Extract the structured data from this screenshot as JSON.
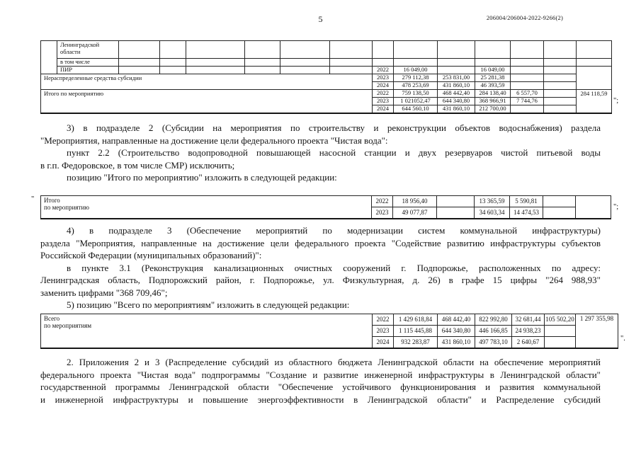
{
  "header": {
    "page_number": "5",
    "doc_number": "206004/206004-2022-9266(2)"
  },
  "marks": {
    "t1_close": "\";",
    "t2_open": "\"",
    "t2_close": "\";",
    "t3_close": "\"."
  },
  "tables": {
    "t1": {
      "cols": [
        23,
        87,
        58,
        37,
        83,
        50,
        70,
        60,
        30,
        62,
        53,
        50,
        47,
        46,
        50
      ],
      "rows": [
        {
          "h": 25,
          "cells": [
            {
              "t": "",
              "rs": 3
            },
            {
              "t": "Ленинградской\nобласти",
              "al": "l",
              "va": "t",
              "ml": true
            },
            {
              "t": ""
            },
            {
              "t": ""
            },
            {
              "t": ""
            },
            {
              "t": ""
            },
            {
              "t": ""
            },
            {
              "t": ""
            },
            {
              "t": ""
            },
            {
              "t": ""
            },
            {
              "t": ""
            },
            {
              "t": ""
            },
            {
              "t": ""
            },
            {
              "t": ""
            },
            {
              "t": ""
            }
          ]
        },
        {
          "h": 10,
          "cells": [
            {
              "t": "в том числе",
              "al": "l"
            },
            {
              "t": ""
            },
            {
              "t": ""
            },
            {
              "t": ""
            },
            {
              "t": ""
            },
            {
              "t": ""
            },
            {
              "t": ""
            },
            {
              "t": ""
            },
            {
              "t": ""
            },
            {
              "t": ""
            },
            {
              "t": ""
            },
            {
              "t": ""
            },
            {
              "t": ""
            },
            {
              "t": ""
            }
          ]
        },
        {
          "h": 11,
          "cells": [
            {
              "t": "ПИР",
              "al": "l"
            },
            {
              "t": ""
            },
            {
              "t": ""
            },
            {
              "t": ""
            },
            {
              "t": ""
            },
            {
              "t": ""
            },
            {
              "t": ""
            },
            {
              "t": "2022"
            },
            {
              "t": "16 049,00"
            },
            {
              "t": ""
            },
            {
              "t": "16 049,00"
            },
            {
              "t": ""
            },
            {
              "t": ""
            },
            {
              "t": "",
              "rs": 3
            }
          ]
        },
        {
          "h": 11,
          "cells": [
            {
              "t": "Нераспределенные средства субсидии",
              "cs": 8,
              "rs": 2,
              "al": "l",
              "va": "t"
            },
            {
              "t": "2023"
            },
            {
              "t": "279 112,38"
            },
            {
              "t": "253 831,00"
            },
            {
              "t": "25 281,38"
            },
            {
              "t": ""
            },
            {
              "t": ""
            }
          ]
        },
        {
          "h": 11,
          "cells": [
            {
              "t": "2024"
            },
            {
              "t": "478 253,69"
            },
            {
              "t": "431 860,10"
            },
            {
              "t": "46 393,59"
            },
            {
              "t": ""
            },
            {
              "t": ""
            }
          ]
        },
        {
          "h": 11,
          "cells": [
            {
              "t": "Итого по мероприятию",
              "cs": 8,
              "rs": 3,
              "al": "l",
              "va": "t"
            },
            {
              "t": "2022"
            },
            {
              "t": "759 138,50"
            },
            {
              "t": "468 442,40"
            },
            {
              "t": "284 138,40"
            },
            {
              "t": "6 557,70"
            },
            {
              "t": ""
            },
            {
              "t": "284 118,59",
              "rs": 3,
              "va": "t"
            }
          ]
        },
        {
          "h": 11,
          "cells": [
            {
              "t": "2023"
            },
            {
              "t": "1 021052,47"
            },
            {
              "t": "644 340,80"
            },
            {
              "t": "368 966,91"
            },
            {
              "t": "7 744,76"
            },
            {
              "t": ""
            }
          ]
        },
        {
          "h": 11,
          "cells": [
            {
              "t": "2024"
            },
            {
              "t": "644 560,10"
            },
            {
              "t": "431 860,10"
            },
            {
              "t": "212 700,00"
            },
            {
              "t": ""
            },
            {
              "t": ""
            }
          ]
        }
      ]
    },
    "t2": {
      "cols": [
        467,
        30,
        62,
        53,
        50,
        47,
        46,
        50
      ],
      "rows": [
        {
          "h": 16,
          "cells": [
            {
              "t": "Итого\nпо мероприятию",
              "rs": 2,
              "al": "l",
              "va": "t",
              "ml": true
            },
            {
              "t": "2022"
            },
            {
              "t": "18 956,40"
            },
            {
              "t": ""
            },
            {
              "t": "13 365,59"
            },
            {
              "t": "5 590,81"
            },
            {
              "t": ""
            },
            {
              "t": "",
              "rs": 2
            }
          ]
        },
        {
          "h": 16,
          "cells": [
            {
              "t": "2023"
            },
            {
              "t": "49 077,87"
            },
            {
              "t": ""
            },
            {
              "t": "34 603,34"
            },
            {
              "t": "14 474,53"
            },
            {
              "t": ""
            }
          ]
        }
      ]
    },
    "t3": {
      "cols": [
        468,
        30,
        62,
        53,
        52,
        46,
        44,
        60
      ],
      "rows": [
        {
          "h": 16,
          "cells": [
            {
              "t": "Всего\nпо мероприятиям",
              "rs": 3,
              "al": "l",
              "va": "t",
              "ml": true
            },
            {
              "t": "2022"
            },
            {
              "t": "1 429 618,84"
            },
            {
              "t": "468 442,40"
            },
            {
              "t": "822 992,80"
            },
            {
              "t": "32 681,44"
            },
            {
              "t": "105 502,20",
              "sz": true
            },
            {
              "t": "1 297 355,98",
              "rs": 3,
              "va": "t"
            }
          ]
        },
        {
          "h": 16,
          "cells": [
            {
              "t": "2023"
            },
            {
              "t": "1 115 445,88"
            },
            {
              "t": "644 340,80"
            },
            {
              "t": "446 166,85"
            },
            {
              "t": "24 938,23"
            },
            {
              "t": ""
            }
          ]
        },
        {
          "h": 16,
          "cells": [
            {
              "t": "2024"
            },
            {
              "t": "932 283,87"
            },
            {
              "t": "431 860,10"
            },
            {
              "t": "497 783,10"
            },
            {
              "t": "2 640,67"
            },
            {
              "t": ""
            }
          ]
        }
      ]
    }
  },
  "blocks": {
    "item3": {
      "lines": [
        {
          "t": "3) в подразделе 2 (Субсидии на мероприятия по строительству и реконструкции объектов водоснабжения) раздела",
          "ind": true,
          "j": true
        },
        {
          "t": "\"Мероприятия, направленные на достижение цели федерального проекта \"Чистая вода\":",
          "ind": false,
          "j": false
        },
        {
          "t": "пункт 2.2 (Строительство водопроводной повышающей насосной станции и двух резервуаров чистой питьевой воды",
          "ind": true,
          "j": true
        },
        {
          "t": "в г.п. Федоровское, в том числе СМР) исключить;",
          "ind": false,
          "j": false
        },
        {
          "t": "позицию \"Итого по мероприятию\" изложить в следующей редакции:",
          "ind": true,
          "j": false
        }
      ]
    },
    "item45": {
      "lines": [
        {
          "t": "4) в подразделе 3 (Обеспечение мероприятий по модернизации систем коммунальной инфраструктуры)",
          "ind": true,
          "j": true
        },
        {
          "t": "раздела \"Мероприятия, направленные на достижение цели федерального проекта \"Содействие развитию инфраструктуры субъектов",
          "ind": false,
          "j": true
        },
        {
          "t": "Российской Федерации (муниципальных образований)\":",
          "ind": false,
          "j": false
        },
        {
          "t": "в пункте 3.1 (Реконструкция канализационных очистных сооружений г. Подпорожье, расположенных по адресу:",
          "ind": true,
          "j": true
        },
        {
          "t": "Ленинградская область, Подпорожский район, г. Подпорожье, ул. Физкультурная, д. 26) в графе 15 цифры \"264 988,93\"",
          "ind": false,
          "j": true
        },
        {
          "t": "заменить цифрами \"368 709,46\";",
          "ind": false,
          "j": false
        },
        {
          "t": "5) позицию \"Всего по мероприятиям\" изложить в следующей редакции:",
          "ind": true,
          "j": false
        }
      ]
    },
    "item2": {
      "lines": [
        {
          "t": "2. Приложения 2 и 3 (Распределение субсидий из областного бюджета Ленинградской области на обеспечение мероприятий",
          "ind": true,
          "j": true
        },
        {
          "t": "федерального проекта \"Чистая вода\" подпрограммы \"Создание и развитие инженерной инфраструктуры в Ленинградской области\"",
          "ind": false,
          "j": true
        },
        {
          "t": "государственной программы Ленинградской области \"Обеспечение устойчивого функционирования и развития коммунальной",
          "ind": false,
          "j": true
        },
        {
          "t": "и инженерной инфраструктуры и повышение энергоэффективности в Ленинградской области\" и Распределение субсидий",
          "ind": false,
          "j": true
        }
      ]
    }
  }
}
